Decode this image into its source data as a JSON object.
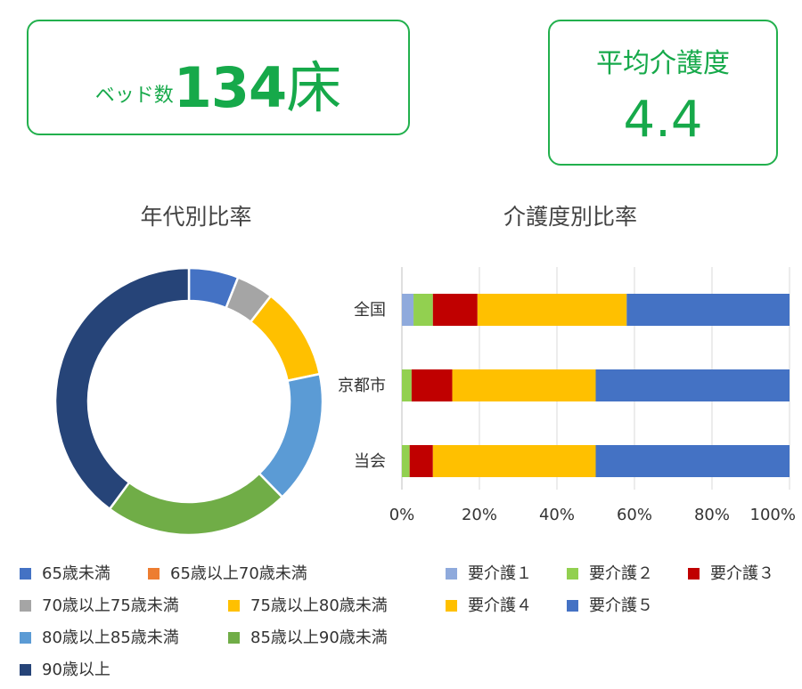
{
  "beds_card": {
    "label": "ベッド数",
    "value": "134",
    "unit": "床"
  },
  "care_card": {
    "label": "平均介護度",
    "value": "4.4"
  },
  "chart_data": [
    {
      "type": "pie",
      "title": "年代別比率",
      "hole": true,
      "categories": [
        "65歳未満",
        "65歳以上70歳未満",
        "70歳以上75歳未満",
        "75歳以上80歳未満",
        "80歳以上85歳未満",
        "85歳以上90歳未満",
        "90歳以上"
      ],
      "values": [
        6.0,
        0.0,
        4.5,
        11.2,
        16.0,
        22.4,
        39.9
      ],
      "colors": [
        "#4472c4",
        "#ed7d31",
        "#a5a5a5",
        "#ffc000",
        "#5b9bd5",
        "#70ad47",
        "#264478"
      ],
      "legend": "bottom"
    },
    {
      "type": "bar",
      "orientation": "horizontal",
      "stacked": true,
      "title": "介護度別比率",
      "categories": [
        "全国",
        "京都市",
        "当会"
      ],
      "series": [
        {
          "name": "要介護１",
          "values": [
            3,
            0,
            0
          ]
        },
        {
          "name": "要介護２",
          "values": [
            5,
            2.5,
            2
          ]
        },
        {
          "name": "要介護３",
          "values": [
            11.5,
            10.5,
            6
          ]
        },
        {
          "name": "要介護４",
          "values": [
            38.5,
            37,
            42
          ]
        },
        {
          "name": "要介護５",
          "values": [
            42,
            50,
            50
          ]
        }
      ],
      "colors": [
        "#8faadc",
        "#92d050",
        "#c00000",
        "#ffc000",
        "#4472c4"
      ],
      "xticks": [
        "0%",
        "20%",
        "40%",
        "60%",
        "80%",
        "100%"
      ],
      "xlim": [
        0,
        100
      ],
      "grid": true,
      "legend": "bottom"
    }
  ]
}
